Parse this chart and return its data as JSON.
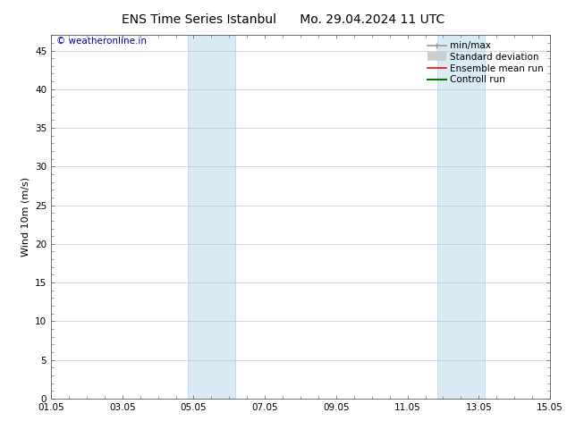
{
  "title_left": "ENS Time Series Istanbul",
  "title_right": "Mo. 29.04.2024 11 UTC",
  "ylabel": "Wind 10m (m/s)",
  "watermark": "© weatheronline.in",
  "xtick_labels": [
    "01.05",
    "03.05",
    "05.05",
    "07.05",
    "09.05",
    "11.05",
    "13.05",
    "15.05"
  ],
  "xtick_positions": [
    0,
    2,
    4,
    6,
    8,
    10,
    12,
    14
  ],
  "xlim": [
    0,
    14
  ],
  "ylim": [
    0,
    47
  ],
  "yticks": [
    0,
    5,
    10,
    15,
    20,
    25,
    30,
    35,
    40,
    45
  ],
  "shaded_regions": [
    {
      "xstart": 3.83,
      "xend": 5.17
    },
    {
      "xstart": 10.83,
      "xend": 12.17
    }
  ],
  "shaded_color": "#daeaf5",
  "shaded_edgecolor": "#b8d4e8",
  "background_color": "#ffffff",
  "plot_bg_color": "#ffffff",
  "legend_entries": [
    {
      "label": "min/max",
      "color": "#999999",
      "lw": 1.2
    },
    {
      "label": "Standard deviation",
      "color": "#cccccc",
      "lw": 7
    },
    {
      "label": "Ensemble mean run",
      "color": "#ff0000",
      "lw": 1.2
    },
    {
      "label": "Controll run",
      "color": "#007700",
      "lw": 1.5
    }
  ],
  "title_fontsize": 10,
  "axis_fontsize": 8,
  "tick_fontsize": 7.5,
  "legend_fontsize": 7.5,
  "watermark_color": "#0000bb",
  "watermark_fontsize": 7.5,
  "grid_color": "#bbbbbb",
  "grid_lw": 0.4,
  "spine_color": "#555555",
  "spine_lw": 0.6
}
